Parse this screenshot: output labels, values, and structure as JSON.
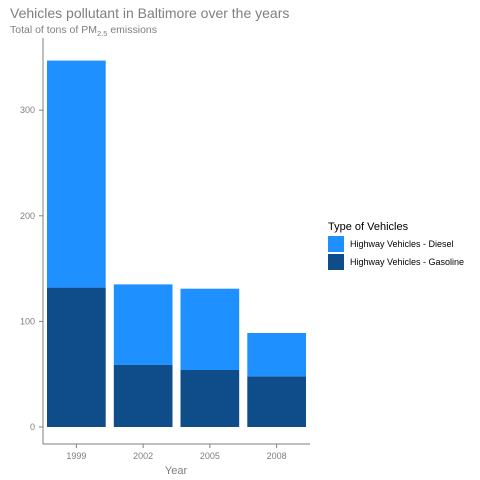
{
  "chart_data": {
    "type": "bar",
    "stacked": true,
    "title": "Vehicles pollutant in Baltimore over the years",
    "subtitle": {
      "prefix": "Total of tons of PM",
      "subscript": "2.5",
      "suffix": " emissions"
    },
    "xlabel": "Year",
    "ylabel": "",
    "categories": [
      "1999",
      "2002",
      "2005",
      "2008"
    ],
    "ylim": [
      0,
      350
    ],
    "yticks": [
      0,
      100,
      200,
      300
    ],
    "grid": false,
    "legend": {
      "title": "Type of Vehicles",
      "position": "right"
    },
    "series": [
      {
        "name": "Highway Vehicles - Gasoline",
        "color": "#0f4c8a",
        "values": [
          132,
          59,
          54,
          48
        ]
      },
      {
        "name": "Highway Vehicles - Diesel",
        "color": "#1e90ff",
        "values": [
          215,
          76,
          77,
          41
        ]
      }
    ],
    "legend_order": [
      "Highway Vehicles - Diesel",
      "Highway Vehicles - Gasoline"
    ]
  }
}
